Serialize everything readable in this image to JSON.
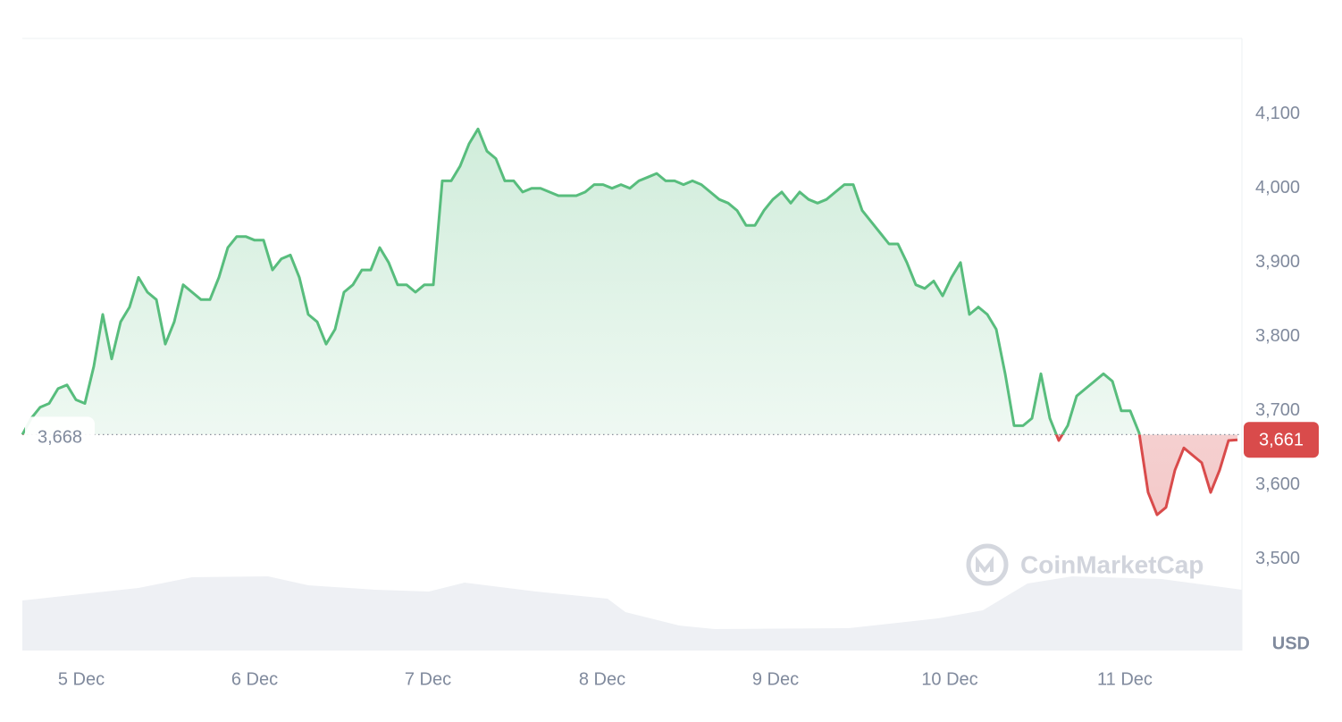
{
  "chart_data": {
    "type": "line",
    "xlim": [
      0,
      136.5
    ],
    "xticks": [
      {
        "value": 6.6,
        "label": "5 Dec"
      },
      {
        "value": 26,
        "label": "6 Dec"
      },
      {
        "value": 45.4,
        "label": "7 Dec"
      },
      {
        "value": 64.9,
        "label": "8 Dec"
      },
      {
        "value": 84.3,
        "label": "9 Dec"
      },
      {
        "value": 103.8,
        "label": "10 Dec"
      },
      {
        "value": 123.4,
        "label": "11 Dec"
      }
    ],
    "ylim": [
      3377,
      4202
    ],
    "yticks": [
      {
        "value": 3500,
        "label": "3,500"
      },
      {
        "value": 3600,
        "label": "3,600"
      },
      {
        "value": 3700,
        "label": "3,700"
      },
      {
        "value": 3800,
        "label": "3,800"
      },
      {
        "value": 3900,
        "label": "3,900"
      },
      {
        "value": 4000,
        "label": "4,000"
      },
      {
        "value": 4100,
        "label": "4,100"
      }
    ],
    "grid": true,
    "y_unit": "USD",
    "watermark": "CoinMarketCap",
    "baseline": {
      "value": 3668,
      "label": "3,668"
    },
    "last_price": {
      "value": 3661,
      "label": "3,661"
    },
    "up_color": "#58bd7d",
    "down_color": "#d94b4b",
    "values": [
      3668,
      3690,
      3705,
      3710,
      3730,
      3735,
      3715,
      3710,
      3760,
      3830,
      3770,
      3820,
      3840,
      3880,
      3860,
      3850,
      3790,
      3820,
      3870,
      3860,
      3850,
      3850,
      3880,
      3920,
      3935,
      3935,
      3930,
      3930,
      3890,
      3905,
      3910,
      3880,
      3830,
      3820,
      3790,
      3810,
      3860,
      3870,
      3890,
      3890,
      3920,
      3900,
      3870,
      3870,
      3860,
      3870,
      3870,
      4010,
      4010,
      4030,
      4060,
      4080,
      4050,
      4040,
      4010,
      4010,
      3995,
      4000,
      4000,
      3995,
      3990,
      3990,
      3990,
      3995,
      4005,
      4005,
      4000,
      4005,
      4000,
      4010,
      4015,
      4020,
      4010,
      4010,
      4005,
      4010,
      4005,
      3995,
      3985,
      3980,
      3970,
      3950,
      3950,
      3970,
      3985,
      3995,
      3980,
      3995,
      3985,
      3980,
      3985,
      3995,
      4005,
      4005,
      3970,
      3955,
      3940,
      3925,
      3925,
      3900,
      3870,
      3865,
      3875,
      3855,
      3880,
      3900,
      3830,
      3840,
      3830,
      3810,
      3750,
      3680,
      3680,
      3690,
      3750,
      3690,
      3660,
      3680,
      3720,
      3730,
      3740,
      3750,
      3740,
      3700,
      3700,
      3670,
      3590,
      3560,
      3570,
      3620,
      3650,
      3640,
      3630,
      3590,
      3620,
      3660,
      3661
    ],
    "volume": {
      "ylim": [
        0,
        100
      ],
      "x": [
        0,
        13,
        19,
        27.5,
        32,
        39.5,
        45.5,
        49.5,
        57.5,
        65.5,
        67.5,
        73.5,
        77.5,
        92.5,
        102.5,
        107.5,
        110.5,
        112.5,
        117.5,
        127.5,
        136.5
      ],
      "values": [
        56,
        70,
        82,
        83,
        73,
        68,
        66,
        76,
        66,
        58,
        43,
        28,
        24,
        25,
        36,
        45,
        63,
        75,
        83,
        80,
        68
      ]
    }
  }
}
